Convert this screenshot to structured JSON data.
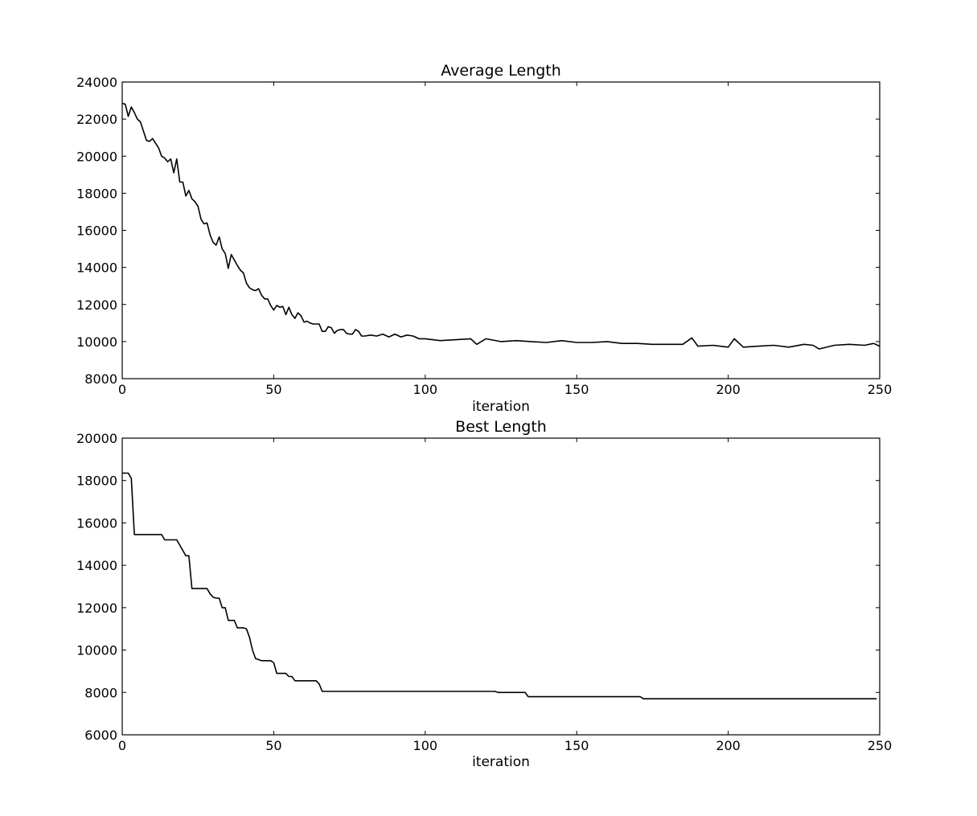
{
  "chart_data": [
    {
      "type": "line",
      "title": "Average Length",
      "xlabel": "iteration",
      "ylabel": "",
      "xlim": [
        0,
        250
      ],
      "ylim": [
        8000,
        24000
      ],
      "xticks": [
        "0",
        "50",
        "100",
        "150",
        "200",
        "250"
      ],
      "yticks": [
        "8000",
        "10000",
        "12000",
        "14000",
        "16000",
        "18000",
        "20000",
        "22000",
        "24000"
      ],
      "grid": false,
      "series": [
        {
          "color": "#000000",
          "x": [
            0,
            1,
            2,
            3,
            4,
            5,
            6,
            7,
            8,
            9,
            10,
            11,
            12,
            13,
            14,
            15,
            16,
            17,
            18,
            19,
            20,
            21,
            22,
            23,
            24,
            25,
            26,
            27,
            28,
            29,
            30,
            31,
            32,
            33,
            34,
            35,
            36,
            37,
            38,
            39,
            40,
            41,
            42,
            43,
            44,
            45,
            46,
            47,
            48,
            49,
            50,
            51,
            52,
            53,
            54,
            55,
            56,
            57,
            58,
            59,
            60,
            61,
            62,
            63,
            64,
            65,
            66,
            67,
            68,
            69,
            70,
            71,
            72,
            73,
            74,
            75,
            76,
            77,
            78,
            79,
            80,
            82,
            84,
            86,
            88,
            90,
            92,
            94,
            96,
            98,
            100,
            105,
            110,
            115,
            117,
            120,
            125,
            130,
            135,
            140,
            145,
            150,
            155,
            160,
            165,
            170,
            175,
            180,
            185,
            188,
            190,
            195,
            200,
            202,
            205,
            210,
            215,
            220,
            225,
            228,
            230,
            235,
            240,
            245,
            248,
            250
          ],
          "values": [
            22850,
            22800,
            22150,
            22650,
            22350,
            22000,
            21850,
            21350,
            20850,
            20800,
            20950,
            20700,
            20450,
            20000,
            19900,
            19700,
            19850,
            19100,
            19850,
            18600,
            18600,
            17850,
            18150,
            17700,
            17550,
            17300,
            16600,
            16350,
            16400,
            15750,
            15350,
            15200,
            15650,
            15000,
            14750,
            13950,
            14700,
            14400,
            14100,
            13850,
            13700,
            13150,
            12900,
            12800,
            12750,
            12850,
            12500,
            12300,
            12300,
            11950,
            11700,
            11950,
            11850,
            11900,
            11450,
            11850,
            11450,
            11250,
            11550,
            11400,
            11050,
            11100,
            11000,
            10950,
            10950,
            10950,
            10550,
            10550,
            10800,
            10750,
            10450,
            10600,
            10650,
            10650,
            10450,
            10400,
            10400,
            10650,
            10550,
            10300,
            10300,
            10350,
            10300,
            10400,
            10250,
            10400,
            10250,
            10350,
            10300,
            10150,
            10150,
            10050,
            10100,
            10150,
            9850,
            10150,
            10000,
            10050,
            10000,
            9950,
            10050,
            9950,
            9950,
            10000,
            9900,
            9900,
            9850,
            9850,
            9850,
            10200,
            9750,
            9800,
            9700,
            10150,
            9700,
            9750,
            9800,
            9700,
            9850,
            9800,
            9600,
            9800,
            9850,
            9800,
            9900,
            9750
          ]
        }
      ]
    },
    {
      "type": "line",
      "title": "Best Length",
      "xlabel": "iteration",
      "ylabel": "",
      "xlim": [
        0,
        250
      ],
      "ylim": [
        6000,
        20000
      ],
      "xticks": [
        "0",
        "50",
        "100",
        "150",
        "200",
        "250"
      ],
      "yticks": [
        "6000",
        "8000",
        "10000",
        "12000",
        "14000",
        "16000",
        "18000",
        "20000"
      ],
      "grid": false,
      "series": [
        {
          "color": "#000000",
          "x": [
            0,
            2,
            3,
            4,
            13,
            14,
            18,
            19,
            21,
            22,
            23,
            28,
            29,
            30,
            31,
            32,
            33,
            34,
            35,
            37,
            38,
            40,
            41,
            42,
            43,
            44,
            46,
            49,
            50,
            51,
            54,
            55,
            56,
            57,
            58,
            60,
            64,
            65,
            66,
            67,
            70,
            80,
            90,
            100,
            110,
            123,
            124,
            133,
            134,
            140,
            150,
            160,
            171,
            172,
            180,
            190,
            200,
            210,
            220,
            230,
            240,
            249
          ],
          "values": [
            18350,
            18350,
            18100,
            15450,
            15450,
            15200,
            15200,
            14950,
            14450,
            14450,
            12900,
            12900,
            12650,
            12500,
            12450,
            12450,
            12000,
            12000,
            11400,
            11400,
            11050,
            11050,
            11000,
            10600,
            10000,
            9600,
            9500,
            9500,
            9400,
            8900,
            8900,
            8750,
            8750,
            8550,
            8550,
            8550,
            8550,
            8400,
            8050,
            8050,
            8050,
            8050,
            8050,
            8050,
            8050,
            8050,
            8000,
            8000,
            7800,
            7800,
            7800,
            7800,
            7800,
            7700,
            7700,
            7700,
            7700,
            7700,
            7700,
            7700,
            7700,
            7700
          ]
        }
      ]
    }
  ]
}
